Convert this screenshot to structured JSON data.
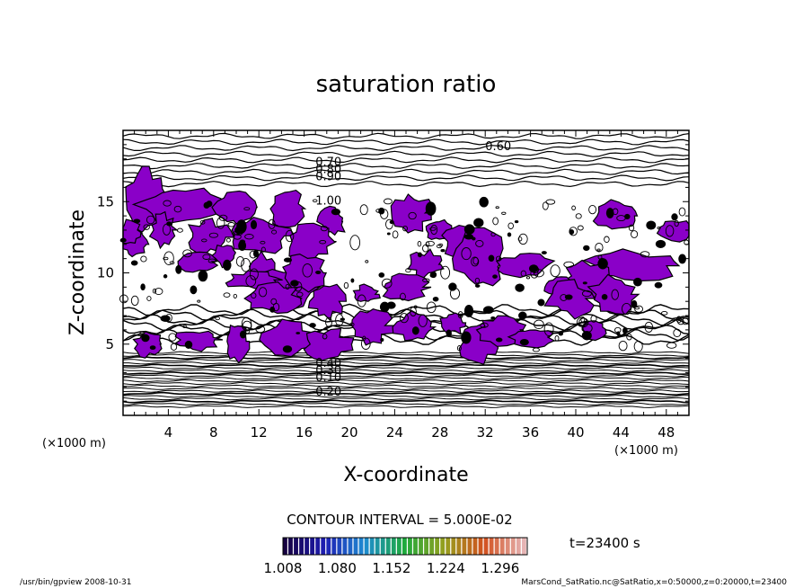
{
  "chart_data": {
    "type": "heatmap",
    "title": "saturation ratio",
    "xlabel": "X-coordinate",
    "ylabel": "Z-coordinate",
    "x_unit": "(×1000 m)",
    "y_unit": "(×1000 m)",
    "xlim": [
      0,
      50
    ],
    "ylim": [
      0,
      20
    ],
    "x_ticks": [
      4,
      8,
      12,
      16,
      20,
      24,
      28,
      32,
      36,
      40,
      44,
      48
    ],
    "y_ticks": [
      5,
      10,
      15
    ],
    "contour_interval_text": "CONTOUR INTERVAL = 5.000E-02",
    "time_text": "t=23400 s",
    "colorbar": {
      "labels": [
        "1.008",
        "1.080",
        "1.152",
        "1.224",
        "1.296"
      ],
      "range": [
        1.008,
        1.332
      ],
      "colors": [
        "#160040",
        "#1e1eb4",
        "#1e8cd2",
        "#1eaa3c",
        "#96a01e",
        "#d2501e",
        "#e6b4b4"
      ]
    },
    "shaded_color": "#8a00c8",
    "contour_labels": [
      {
        "text": "0.60",
        "x": 32.0,
        "z": 18.6
      },
      {
        "text": "0.70",
        "x": 17.0,
        "z": 17.5
      },
      {
        "text": "0.80",
        "x": 17.0,
        "z": 17.0
      },
      {
        "text": "0.90",
        "x": 17.0,
        "z": 16.5
      },
      {
        "text": "1.00",
        "x": 17.0,
        "z": 14.8
      },
      {
        "text": "0.40",
        "x": 17.0,
        "z": 3.4
      },
      {
        "text": "0.30",
        "x": 17.0,
        "z": 2.9
      },
      {
        "text": "0.10",
        "x": 17.0,
        "z": 2.4
      },
      {
        "text": "0.20",
        "x": 17.0,
        "z": 1.4
      }
    ],
    "supersaturated_regions": [
      {
        "x": 2.0,
        "z": 15.2
      },
      {
        "x": 5.0,
        "z": 14.8
      },
      {
        "x": 10.0,
        "z": 14.6
      },
      {
        "x": 14.5,
        "z": 14.5
      },
      {
        "x": 18.5,
        "z": 13.6
      },
      {
        "x": 3.5,
        "z": 13.0
      },
      {
        "x": 7.5,
        "z": 12.5
      },
      {
        "x": 12.0,
        "z": 12.6
      },
      {
        "x": 16.5,
        "z": 12.2
      },
      {
        "x": 1.0,
        "z": 12.0
      },
      {
        "x": 9.0,
        "z": 11.2
      },
      {
        "x": 12.5,
        "z": 10.0
      },
      {
        "x": 6.5,
        "z": 10.8
      },
      {
        "x": 14.5,
        "z": 9.0
      },
      {
        "x": 16.0,
        "z": 10.0
      },
      {
        "x": 11.5,
        "z": 9.5
      },
      {
        "x": 13.2,
        "z": 8.2
      },
      {
        "x": 25.5,
        "z": 14.2
      },
      {
        "x": 27.8,
        "z": 13.0
      },
      {
        "x": 30.0,
        "z": 12.2
      },
      {
        "x": 26.8,
        "z": 10.6
      },
      {
        "x": 31.5,
        "z": 11.0
      },
      {
        "x": 24.8,
        "z": 9.0
      },
      {
        "x": 43.5,
        "z": 14.0
      },
      {
        "x": 48.8,
        "z": 13.0
      },
      {
        "x": 35.5,
        "z": 10.5
      },
      {
        "x": 45.0,
        "z": 10.5
      },
      {
        "x": 41.0,
        "z": 9.5
      },
      {
        "x": 38.5,
        "z": 9.0
      },
      {
        "x": 43.2,
        "z": 8.5
      },
      {
        "x": 39.5,
        "z": 8.2
      },
      {
        "x": 2.2,
        "z": 5.0
      },
      {
        "x": 6.5,
        "z": 5.3
      },
      {
        "x": 10.0,
        "z": 5.2
      },
      {
        "x": 14.5,
        "z": 5.3
      },
      {
        "x": 18.0,
        "z": 5.0
      },
      {
        "x": 21.8,
        "z": 6.3
      },
      {
        "x": 25.8,
        "z": 6.2
      },
      {
        "x": 29.2,
        "z": 6.5
      },
      {
        "x": 31.5,
        "z": 5.2
      },
      {
        "x": 33.5,
        "z": 6.0
      },
      {
        "x": 36.2,
        "z": 5.5
      },
      {
        "x": 41.5,
        "z": 6.0
      },
      {
        "x": 21.5,
        "z": 8.5
      },
      {
        "x": 18.0,
        "z": 8.0
      },
      {
        "x": 0.5,
        "z": 12.8
      }
    ],
    "footer_left": "/usr/bin/gpview   2008-10-31",
    "footer_right": "MarsCond_SatRatio.nc@SatRatio,x=0:50000,z=0:20000,t=23400"
  }
}
